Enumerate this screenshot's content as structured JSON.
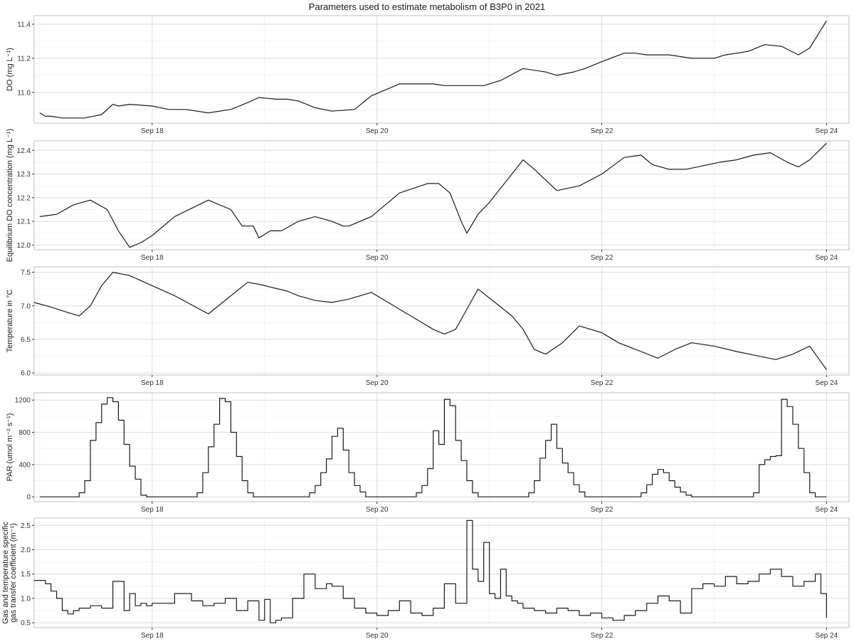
{
  "title": "Parameters used to estimate metabolism of B3P0 in 2021",
  "x_ticks": [
    "Sep 18",
    "Sep 20",
    "Sep 22",
    "Sep 24"
  ],
  "x_tick_values": [
    18,
    20,
    22,
    24
  ],
  "x_range": [
    16.95,
    24.2
  ],
  "colors": {
    "line": "#1a1a1a",
    "grid": "#dedede",
    "panel_border": "#bfbfbf",
    "text": "#333333"
  },
  "chart_data": [
    {
      "type": "line",
      "ylabel": "DO (mg L⁻¹)",
      "ylim": [
        10.82,
        11.45
      ],
      "yticks": [
        11.0,
        11.2,
        11.4
      ],
      "ytick_labels": [
        "11.0",
        "11.2",
        "11.4"
      ],
      "step": false,
      "x": [
        17.0,
        17.05,
        17.1,
        17.2,
        17.3,
        17.4,
        17.55,
        17.65,
        17.7,
        17.8,
        18.0,
        18.15,
        18.3,
        18.5,
        18.7,
        18.85,
        18.95,
        19.1,
        19.2,
        19.3,
        19.45,
        19.6,
        19.8,
        19.95,
        20.2,
        20.5,
        20.6,
        20.75,
        20.85,
        20.95,
        21.1,
        21.3,
        21.5,
        21.6,
        21.75,
        21.85,
        22.0,
        22.2,
        22.3,
        22.4,
        22.6,
        22.8,
        22.95,
        23.0,
        23.1,
        23.3,
        23.45,
        23.6,
        23.75,
        23.85,
        24.0
      ],
      "y": [
        10.88,
        10.86,
        10.86,
        10.85,
        10.85,
        10.85,
        10.87,
        10.93,
        10.92,
        10.93,
        10.92,
        10.9,
        10.9,
        10.88,
        10.9,
        10.94,
        10.97,
        10.96,
        10.96,
        10.95,
        10.91,
        10.89,
        10.9,
        10.98,
        11.05,
        11.05,
        11.04,
        11.04,
        11.04,
        11.04,
        11.07,
        11.14,
        11.12,
        11.1,
        11.12,
        11.14,
        11.18,
        11.23,
        11.23,
        11.22,
        11.22,
        11.2,
        11.2,
        11.2,
        11.22,
        11.24,
        11.28,
        11.27,
        11.22,
        11.26,
        11.42
      ]
    },
    {
      "type": "line",
      "ylabel": "Equilibrium DO concentration (mg L⁻¹)",
      "ylim": [
        11.98,
        12.44
      ],
      "yticks": [
        12.0,
        12.1,
        12.2,
        12.3,
        12.4
      ],
      "ytick_labels": [
        "12.0",
        "12.1",
        "12.2",
        "12.3",
        "12.4"
      ],
      "step": false,
      "x": [
        17.0,
        17.15,
        17.3,
        17.45,
        17.6,
        17.7,
        17.8,
        17.9,
        18.0,
        18.2,
        18.5,
        18.7,
        18.8,
        18.9,
        18.95,
        19.05,
        19.15,
        19.3,
        19.45,
        19.6,
        19.7,
        19.75,
        19.95,
        20.2,
        20.45,
        20.55,
        20.65,
        20.75,
        20.8,
        20.9,
        21.0,
        21.2,
        21.3,
        21.4,
        21.6,
        21.8,
        22.0,
        22.2,
        22.35,
        22.45,
        22.6,
        22.75,
        22.95,
        23.05,
        23.2,
        23.35,
        23.5,
        23.65,
        23.75,
        23.85,
        24.0
      ],
      "y": [
        12.12,
        12.13,
        12.17,
        12.19,
        12.15,
        12.06,
        11.99,
        12.01,
        12.04,
        12.12,
        12.19,
        12.15,
        12.08,
        12.08,
        12.03,
        12.06,
        12.06,
        12.1,
        12.12,
        12.1,
        12.08,
        12.08,
        12.12,
        12.22,
        12.26,
        12.26,
        12.22,
        12.1,
        12.05,
        12.13,
        12.18,
        12.3,
        12.36,
        12.32,
        12.23,
        12.25,
        12.3,
        12.37,
        12.38,
        12.34,
        12.32,
        12.32,
        12.34,
        12.35,
        12.36,
        12.38,
        12.39,
        12.35,
        12.33,
        12.36,
        12.43
      ]
    },
    {
      "type": "line",
      "ylabel": "Temperature in °C",
      "ylim": [
        5.97,
        7.58
      ],
      "yticks": [
        6.0,
        6.5,
        7.0,
        7.5
      ],
      "ytick_labels": [
        "6.0",
        "6.5",
        "7.0",
        "7.5"
      ],
      "step": false,
      "x": [
        16.95,
        17.1,
        17.25,
        17.35,
        17.45,
        17.55,
        17.65,
        17.8,
        18.0,
        18.2,
        18.5,
        18.7,
        18.85,
        18.95,
        19.05,
        19.2,
        19.3,
        19.45,
        19.6,
        19.75,
        19.95,
        20.1,
        20.35,
        20.5,
        20.6,
        20.7,
        20.8,
        20.9,
        21.05,
        21.2,
        21.3,
        21.4,
        21.5,
        21.65,
        21.8,
        22.0,
        22.15,
        22.35,
        22.5,
        22.65,
        22.8,
        23.0,
        23.2,
        23.4,
        23.55,
        23.7,
        23.85,
        24.0
      ],
      "y": [
        7.05,
        6.98,
        6.9,
        6.85,
        7.0,
        7.3,
        7.5,
        7.45,
        7.3,
        7.15,
        6.88,
        7.15,
        7.35,
        7.32,
        7.28,
        7.22,
        7.15,
        7.08,
        7.05,
        7.1,
        7.2,
        7.05,
        6.8,
        6.65,
        6.58,
        6.65,
        6.95,
        7.25,
        7.05,
        6.85,
        6.65,
        6.35,
        6.28,
        6.45,
        6.7,
        6.6,
        6.45,
        6.32,
        6.22,
        6.35,
        6.45,
        6.4,
        6.32,
        6.25,
        6.2,
        6.28,
        6.4,
        6.05
      ]
    },
    {
      "type": "line",
      "ylabel": "PAR (umol m⁻² s⁻¹)",
      "ylim": [
        -60,
        1290
      ],
      "yticks": [
        0,
        400,
        800,
        1200
      ],
      "ytick_labels": [
        "0",
        "400",
        "800",
        "1200"
      ],
      "step": true,
      "x": [
        17.0,
        17.35,
        17.4,
        17.45,
        17.5,
        17.55,
        17.6,
        17.65,
        17.7,
        17.75,
        17.8,
        17.85,
        17.9,
        17.95,
        18.4,
        18.45,
        18.5,
        18.55,
        18.6,
        18.65,
        18.7,
        18.75,
        18.8,
        18.85,
        18.9,
        18.95,
        19.4,
        19.45,
        19.5,
        19.55,
        19.6,
        19.65,
        19.7,
        19.75,
        19.8,
        19.85,
        19.9,
        20.35,
        20.4,
        20.45,
        20.5,
        20.55,
        20.6,
        20.65,
        20.7,
        20.75,
        20.8,
        20.85,
        20.9,
        21.35,
        21.4,
        21.45,
        21.5,
        21.55,
        21.6,
        21.65,
        21.7,
        21.75,
        21.8,
        21.85,
        22.35,
        22.4,
        22.45,
        22.5,
        22.55,
        22.6,
        22.65,
        22.7,
        22.75,
        22.8,
        23.35,
        23.4,
        23.45,
        23.5,
        23.55,
        23.6,
        23.65,
        23.7,
        23.75,
        23.8,
        23.85,
        23.9,
        24.0
      ],
      "y": [
        0,
        50,
        200,
        700,
        920,
        1150,
        1230,
        1180,
        950,
        650,
        380,
        220,
        20,
        0,
        50,
        300,
        620,
        900,
        1220,
        1180,
        800,
        500,
        200,
        50,
        0,
        0,
        50,
        140,
        300,
        470,
        750,
        850,
        580,
        300,
        140,
        60,
        0,
        50,
        140,
        350,
        820,
        650,
        1210,
        1130,
        700,
        450,
        200,
        50,
        0,
        50,
        200,
        480,
        700,
        900,
        600,
        420,
        300,
        150,
        60,
        0,
        50,
        150,
        280,
        340,
        300,
        200,
        120,
        60,
        20,
        0,
        50,
        400,
        460,
        500,
        510,
        1210,
        1120,
        900,
        600,
        300,
        50,
        0,
        0
      ]
    },
    {
      "type": "line",
      "ylabel": "Gas and temperature specific gas transfer coefficient (m⁻¹)",
      "ylim": [
        0.4,
        2.65
      ],
      "yticks": [
        0.5,
        1.0,
        1.5,
        2.0,
        2.5
      ],
      "ytick_labels": [
        "0.5",
        "1.0",
        "1.5",
        "2.0",
        "2.5"
      ],
      "step": true,
      "x": [
        16.95,
        17.05,
        17.1,
        17.15,
        17.2,
        17.25,
        17.3,
        17.35,
        17.45,
        17.55,
        17.65,
        17.75,
        17.8,
        17.85,
        17.9,
        17.95,
        18.0,
        18.2,
        18.35,
        18.45,
        18.55,
        18.65,
        18.75,
        18.85,
        18.95,
        19.0,
        19.05,
        19.1,
        19.15,
        19.25,
        19.35,
        19.45,
        19.55,
        19.6,
        19.7,
        19.8,
        19.9,
        20.0,
        20.1,
        20.2,
        20.3,
        20.4,
        20.5,
        20.6,
        20.7,
        20.8,
        20.85,
        20.9,
        20.95,
        21.0,
        21.05,
        21.1,
        21.15,
        21.2,
        21.25,
        21.3,
        21.4,
        21.5,
        21.6,
        21.7,
        21.8,
        21.9,
        22.0,
        22.1,
        22.2,
        22.3,
        22.4,
        22.5,
        22.6,
        22.7,
        22.8,
        22.9,
        23.0,
        23.1,
        23.2,
        23.3,
        23.4,
        23.5,
        23.55,
        23.6,
        23.7,
        23.8,
        23.9,
        23.95,
        24.0
      ],
      "y": [
        1.37,
        1.3,
        1.15,
        1.0,
        0.75,
        0.68,
        0.75,
        0.8,
        0.85,
        0.8,
        1.35,
        0.75,
        1.1,
        0.85,
        0.9,
        0.85,
        0.9,
        1.1,
        0.95,
        0.85,
        0.9,
        1.0,
        0.75,
        0.95,
        0.55,
        0.98,
        0.5,
        0.55,
        0.6,
        1.0,
        1.5,
        1.2,
        1.3,
        1.25,
        1.0,
        0.8,
        0.7,
        0.65,
        0.75,
        0.95,
        0.7,
        0.65,
        0.8,
        1.3,
        0.9,
        2.6,
        1.6,
        1.35,
        2.15,
        1.1,
        1.0,
        1.6,
        1.05,
        0.95,
        0.9,
        0.8,
        0.75,
        0.7,
        0.8,
        0.75,
        0.65,
        0.7,
        0.6,
        0.55,
        0.65,
        0.75,
        0.9,
        1.05,
        0.95,
        0.7,
        1.2,
        1.3,
        1.25,
        1.45,
        1.3,
        1.35,
        1.5,
        1.6,
        1.6,
        1.45,
        1.25,
        1.35,
        1.5,
        1.1,
        0.6
      ]
    }
  ]
}
